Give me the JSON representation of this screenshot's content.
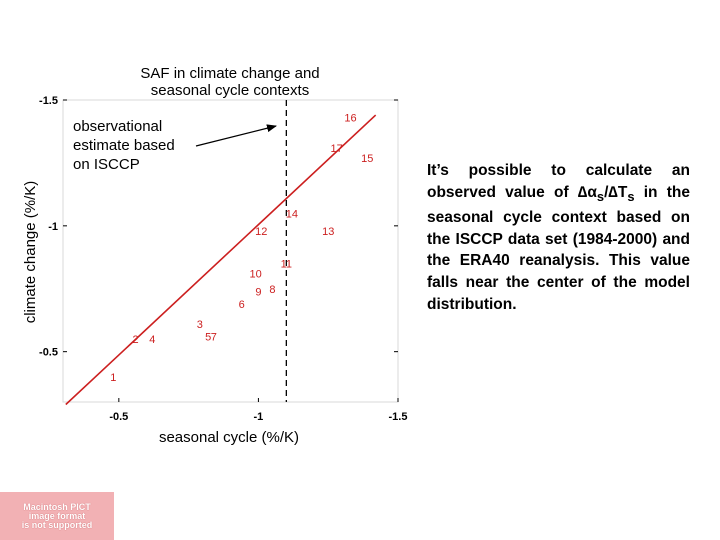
{
  "chart_data": {
    "type": "scatter",
    "title_lines": [
      "SAF in climate change and",
      "seasonal cycle contexts"
    ],
    "xlabel": "seasonal cycle (%/K)",
    "ylabel": "climate change (%/K)",
    "xlim": [
      -0.3,
      -1.5
    ],
    "ylim": [
      -0.3,
      -1.5
    ],
    "x_ticks": [
      -0.5,
      -1,
      -1.5
    ],
    "x_tick_labels": [
      "-0.5",
      "-1",
      "-1.5"
    ],
    "y_ticks": [
      -0.5,
      -1,
      -1.5
    ],
    "y_tick_labels": [
      "-0.5",
      "-1",
      "-1.5"
    ],
    "points": [
      {
        "label": "1",
        "x": -0.48,
        "y": -0.4
      },
      {
        "label": "2",
        "x": -0.56,
        "y": -0.55
      },
      {
        "label": "4",
        "x": -0.62,
        "y": -0.55
      },
      {
        "label": "3",
        "x": -0.79,
        "y": -0.61
      },
      {
        "label": "5",
        "x": -0.82,
        "y": -0.56
      },
      {
        "label": "7",
        "x": -0.84,
        "y": -0.56
      },
      {
        "label": "6",
        "x": -0.94,
        "y": -0.69
      },
      {
        "label": "9",
        "x": -1.0,
        "y": -0.74
      },
      {
        "label": "8",
        "x": -1.05,
        "y": -0.75
      },
      {
        "label": "10",
        "x": -0.99,
        "y": -0.81
      },
      {
        "label": "11",
        "x": -1.1,
        "y": -0.85
      },
      {
        "label": "12",
        "x": -1.01,
        "y": -0.98
      },
      {
        "label": "13",
        "x": -1.25,
        "y": -0.98
      },
      {
        "label": "14",
        "x": -1.12,
        "y": -1.05
      },
      {
        "label": "15",
        "x": -1.39,
        "y": -1.27
      },
      {
        "label": "16",
        "x": -1.33,
        "y": -1.43
      },
      {
        "label": "17",
        "x": -1.28,
        "y": -1.31
      }
    ],
    "fit_line": {
      "x": [
        -0.31,
        -1.42
      ],
      "y": [
        -0.29,
        -1.44
      ]
    },
    "observed_x": -1.1,
    "annotation": [
      "observational",
      "estimate based",
      "on ISCCP"
    ],
    "colors": {
      "points": "#cc1f1f",
      "fit_line": "#cc1f1f",
      "observed_line": "#000000",
      "axes": "#000000"
    }
  },
  "description": {
    "line_1": "It’s possible to calculate an",
    "line_2_prefix": "observed value of ",
    "delta_1": "∆",
    "alpha": "α",
    "sub_s_1": "s",
    "slash": "/",
    "delta_2": "∆",
    "t_letter": "T",
    "sub_s_2": "s",
    "line_2_suffix": " in",
    "line_3": "the seasonal cycle context",
    "line_4": "based on the ISCCP data set",
    "line_5": "(1984-2000) and the ERA40",
    "line_6": "reanalysis.  This value falls",
    "line_7": "near the center of the model",
    "line_8": "distribution."
  },
  "placeholder": {
    "line_1": "Macintosh PICT",
    "line_2": "image format",
    "line_3": "is not supported"
  }
}
